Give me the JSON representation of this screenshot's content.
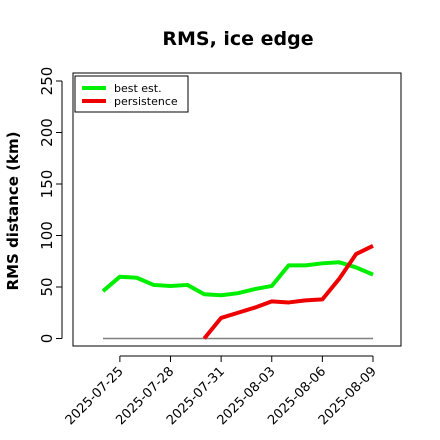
{
  "chart_data": {
    "type": "line",
    "title": "RMS, ice edge",
    "xlabel": "",
    "ylabel": "RMS distance (km)",
    "x": [
      "2025-07-24",
      "2025-07-25",
      "2025-07-26",
      "2025-07-27",
      "2025-07-28",
      "2025-07-29",
      "2025-07-30",
      "2025-07-31",
      "2025-08-01",
      "2025-08-02",
      "2025-08-03",
      "2025-08-04",
      "2025-08-05",
      "2025-08-06",
      "2025-08-07",
      "2025-08-08",
      "2025-08-09"
    ],
    "xticks": [
      "2025-07-25",
      "2025-07-28",
      "2025-07-31",
      "2025-08-03",
      "2025-08-06",
      "2025-08-09"
    ],
    "ylim": [
      0,
      250
    ],
    "yticks": [
      0,
      50,
      100,
      150,
      200,
      250
    ],
    "series": [
      {
        "name": "best est.",
        "color": "#00ee00",
        "values": [
          46,
          60,
          59,
          52,
          51,
          52,
          43,
          42,
          44,
          48,
          51,
          71,
          71,
          73,
          74,
          69,
          62
        ]
      },
      {
        "name": "persistence",
        "color": "#ee0000",
        "values": [
          null,
          null,
          null,
          null,
          null,
          null,
          0,
          20,
          25,
          30,
          36,
          35,
          37,
          38,
          58,
          82,
          90
        ]
      }
    ],
    "baseline": {
      "value": 0,
      "color": "#808080"
    },
    "legend_position": "top-left",
    "grid": false
  }
}
